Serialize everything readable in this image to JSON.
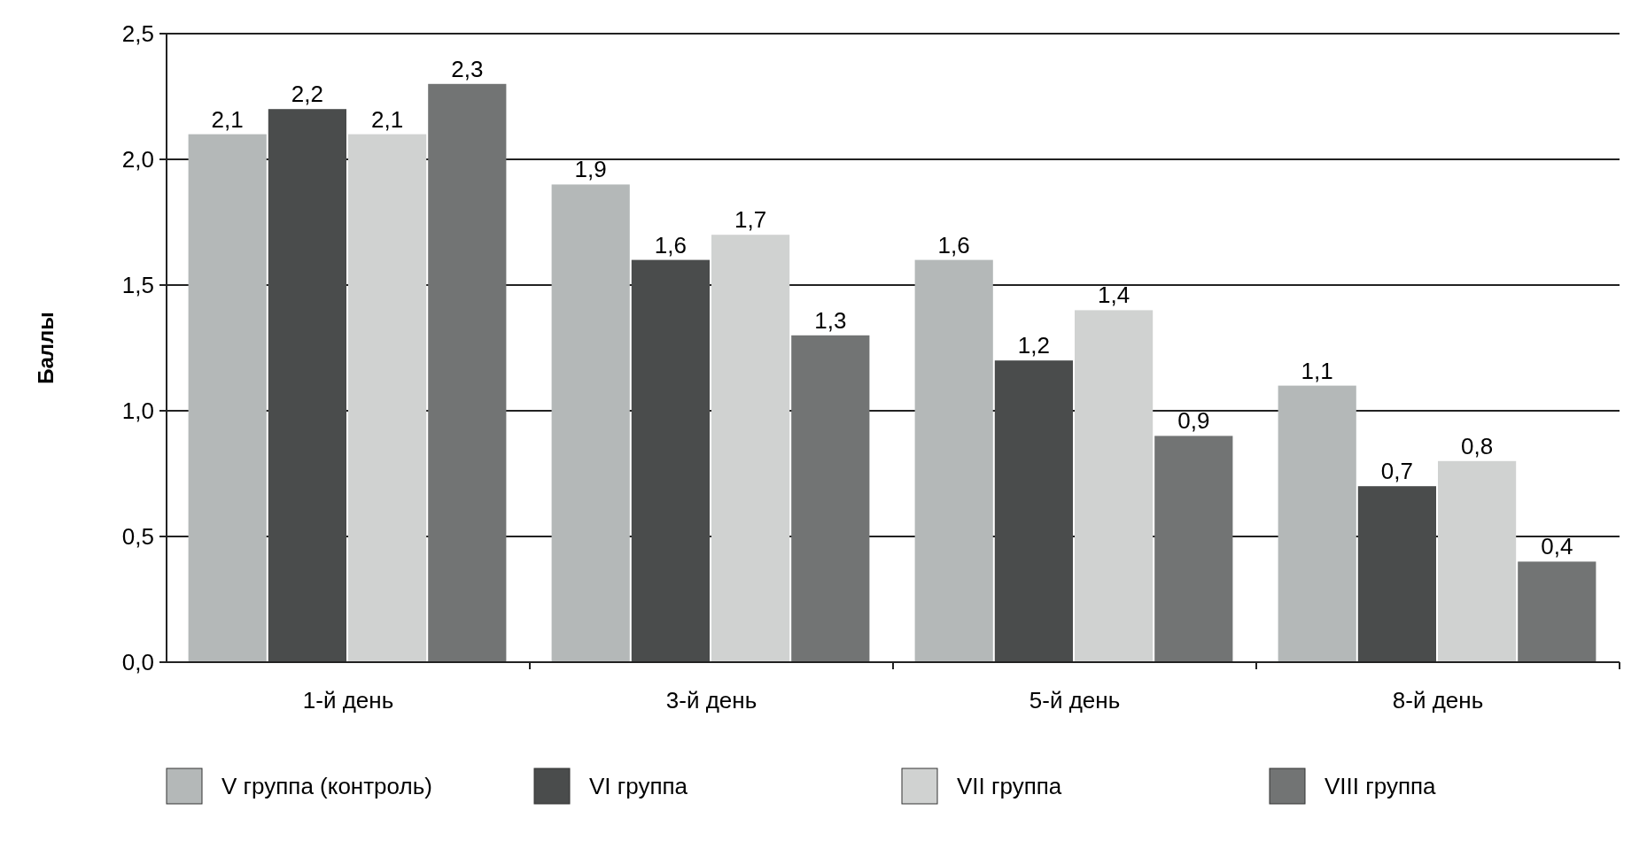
{
  "chart_data": {
    "type": "bar",
    "ylabel": "Баллы",
    "categories": [
      "1-й день",
      "3-й день",
      "5-й день",
      "8-й день"
    ],
    "series": [
      {
        "name": "V группа (контроль)",
        "color": "#b4b8b8",
        "values": [
          2.1,
          1.9,
          1.6,
          1.1
        ],
        "value_labels": [
          "2,1",
          "1,9",
          "1,6",
          "1,1"
        ]
      },
      {
        "name": "VI группа",
        "color": "#4a4c4c",
        "values": [
          2.2,
          1.6,
          1.2,
          0.7
        ],
        "value_labels": [
          "2,2",
          "1,6",
          "1,2",
          "0,7"
        ]
      },
      {
        "name": "VII группа",
        "color": "#d0d2d1",
        "values": [
          2.1,
          1.7,
          1.4,
          0.8
        ],
        "value_labels": [
          "2,1",
          "1,7",
          "1,4",
          "0,8"
        ]
      },
      {
        "name": "VIII группа",
        "color": "#727474",
        "values": [
          2.3,
          1.3,
          0.9,
          0.4
        ],
        "value_labels": [
          "2,3",
          "1,3",
          "0,9",
          "0,4"
        ]
      }
    ],
    "ylim": [
      0,
      2.5
    ],
    "yticks": [
      {
        "value": 0,
        "label": "0,0"
      },
      {
        "value": 0.5,
        "label": "0,5"
      },
      {
        "value": 1,
        "label": "1,0"
      },
      {
        "value": 1.5,
        "label": "1,5"
      },
      {
        "value": 2,
        "label": "2,0"
      },
      {
        "value": 2.5,
        "label": "2,5"
      }
    ],
    "grid": "y",
    "legend": "bottom"
  }
}
